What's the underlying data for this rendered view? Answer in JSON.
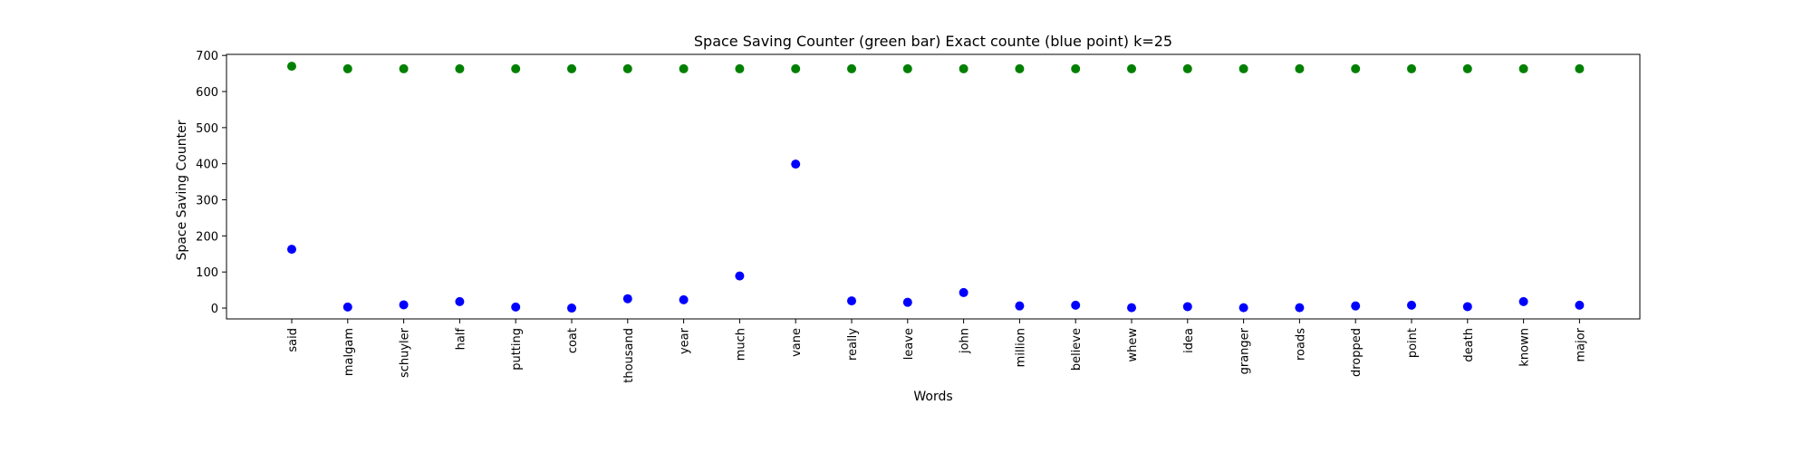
{
  "chart_data": {
    "type": "scatter",
    "title": "Space Saving Counter (green bar)  Exact counte (blue point) k=25",
    "xlabel": "Words",
    "ylabel": "Space Saving Counter",
    "ylim": [
      -30,
      703
    ],
    "yticks": [
      0,
      100,
      200,
      300,
      400,
      500,
      600,
      700
    ],
    "grid": false,
    "categories": [
      "said",
      "malgam",
      "schuyler",
      "half",
      "putting",
      "coat",
      "thousand",
      "year",
      "much",
      "vane",
      "really",
      "leave",
      "john",
      "million",
      "believe",
      "whew",
      "idea",
      "granger",
      "roads",
      "dropped",
      "point",
      "death",
      "known",
      "major"
    ],
    "series": [
      {
        "color": "#008000",
        "values": [
          670,
          663,
          663,
          663,
          663,
          663,
          663,
          663,
          663,
          663,
          663,
          663,
          663,
          663,
          663,
          663,
          663,
          663,
          663,
          663,
          663,
          663,
          663,
          663
        ]
      },
      {
        "color": "#0000ff",
        "values": [
          163,
          3,
          9,
          18,
          3,
          0,
          26,
          23,
          89,
          399,
          20,
          16,
          43,
          6,
          8,
          1,
          4,
          1,
          1,
          6,
          8,
          4,
          18,
          8
        ]
      }
    ]
  }
}
